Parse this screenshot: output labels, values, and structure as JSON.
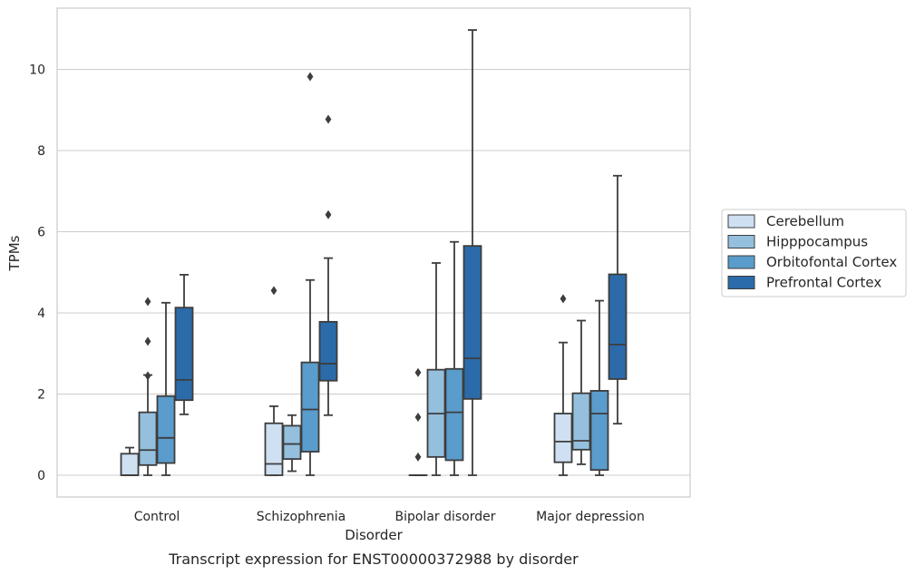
{
  "caption": "Transcript expression for ENST00000372988 by disorder",
  "chart_data": {
    "type": "box",
    "title": "",
    "xlabel": "Disorder",
    "ylabel": "TPMs",
    "ylim": [
      -0.5,
      11.5
    ],
    "yticks": [
      0,
      2,
      4,
      6,
      8,
      10
    ],
    "grid": "horizontal",
    "legend_position": "right",
    "categories": [
      "Control",
      "Schizophrenia",
      "Bipolar disorder",
      "Major depression"
    ],
    "series": [
      {
        "name": "Cerebellum",
        "color": "#cfe0f2",
        "boxes": [
          {
            "q1": 0.0,
            "median": 0.0,
            "q3": 0.53,
            "whisker_low": 0.0,
            "whisker_high": 0.68,
            "outliers": []
          },
          {
            "q1": 0.0,
            "median": 0.28,
            "q3": 1.28,
            "whisker_low": 0.0,
            "whisker_high": 1.7,
            "outliers": [
              4.55
            ]
          },
          {
            "q1": 0.0,
            "median": 0.0,
            "q3": 0.0,
            "whisker_low": 0.0,
            "whisker_high": 0.0,
            "outliers": [
              2.53,
              1.43,
              0.45
            ]
          },
          {
            "q1": 0.32,
            "median": 0.83,
            "q3": 1.52,
            "whisker_low": 0.0,
            "whisker_high": 3.27,
            "outliers": [
              4.35
            ]
          }
        ]
      },
      {
        "name": "Hipppocampus",
        "color": "#94c0de",
        "boxes": [
          {
            "q1": 0.25,
            "median": 0.62,
            "q3": 1.55,
            "whisker_low": 0.0,
            "whisker_high": 2.47,
            "outliers": [
              4.28,
              3.3,
              2.45
            ]
          },
          {
            "q1": 0.4,
            "median": 0.77,
            "q3": 1.22,
            "whisker_low": 0.1,
            "whisker_high": 1.48,
            "outliers": []
          },
          {
            "q1": 0.45,
            "median": 1.52,
            "q3": 2.6,
            "whisker_low": 0.0,
            "whisker_high": 5.23,
            "outliers": []
          },
          {
            "q1": 0.63,
            "median": 0.85,
            "q3": 2.02,
            "whisker_low": 0.27,
            "whisker_high": 3.81,
            "outliers": []
          }
        ]
      },
      {
        "name": "Orbitofontal Cortex",
        "color": "#5a9ccb",
        "boxes": [
          {
            "q1": 0.3,
            "median": 0.92,
            "q3": 1.95,
            "whisker_low": 0.0,
            "whisker_high": 4.25,
            "outliers": []
          },
          {
            "q1": 0.58,
            "median": 1.62,
            "q3": 2.78,
            "whisker_low": 0.0,
            "whisker_high": 4.81,
            "outliers": [
              9.82
            ]
          },
          {
            "q1": 0.37,
            "median": 1.55,
            "q3": 2.62,
            "whisker_low": 0.0,
            "whisker_high": 5.75,
            "outliers": []
          },
          {
            "q1": 0.13,
            "median": 1.52,
            "q3": 2.08,
            "whisker_low": 0.0,
            "whisker_high": 4.3,
            "outliers": []
          }
        ]
      },
      {
        "name": "Prefrontal Cortex",
        "color": "#2b6ba9",
        "boxes": [
          {
            "q1": 1.85,
            "median": 2.35,
            "q3": 4.13,
            "whisker_low": 1.5,
            "whisker_high": 4.94,
            "outliers": []
          },
          {
            "q1": 2.33,
            "median": 2.75,
            "q3": 3.78,
            "whisker_low": 1.48,
            "whisker_high": 5.35,
            "outliers": [
              8.77,
              6.42
            ]
          },
          {
            "q1": 1.88,
            "median": 2.88,
            "q3": 5.65,
            "whisker_low": 0.0,
            "whisker_high": 10.97,
            "outliers": []
          },
          {
            "q1": 2.37,
            "median": 3.22,
            "q3": 4.95,
            "whisker_low": 1.27,
            "whisker_high": 7.38,
            "outliers": []
          }
        ]
      }
    ]
  }
}
